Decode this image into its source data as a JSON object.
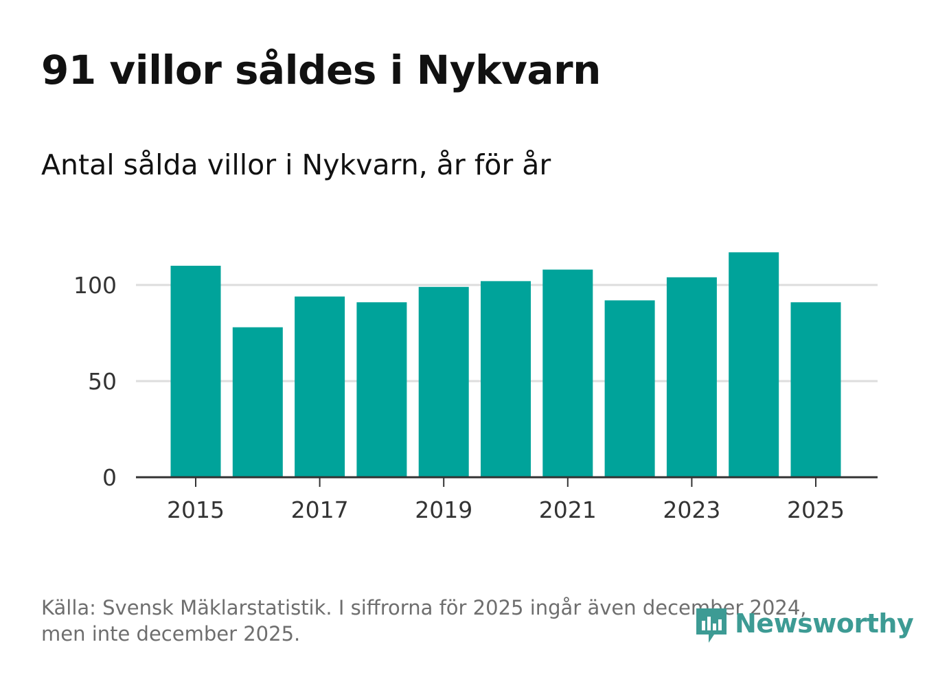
{
  "header": {
    "title": "91 villor såldes i Nykvarn",
    "subtitle": "Antal sålda villor i Nykvarn, år för år"
  },
  "chart_data": {
    "type": "bar",
    "categories": [
      "2015",
      "2016",
      "2017",
      "2018",
      "2019",
      "2020",
      "2021",
      "2022",
      "2023",
      "2024",
      "2025"
    ],
    "values": [
      110,
      78,
      94,
      91,
      99,
      102,
      108,
      92,
      104,
      117,
      91
    ],
    "ylim": [
      0,
      125
    ],
    "yticks": [
      0,
      50,
      100
    ],
    "xticks": [
      "2015",
      "2017",
      "2019",
      "2021",
      "2023",
      "2025"
    ],
    "grid": true,
    "bar_color": "#00a39a",
    "title": "",
    "xlabel": "",
    "ylabel": ""
  },
  "footer": {
    "source_line1": "Källa: Svensk Mäklarstatistik. I siffrorna för 2025 ingår även december 2024,",
    "source_line2": "men inte december 2025.",
    "brand": "Newsworthy",
    "brand_icon": "newsworthy-logo-icon",
    "brand_color": "#3d9b94"
  }
}
